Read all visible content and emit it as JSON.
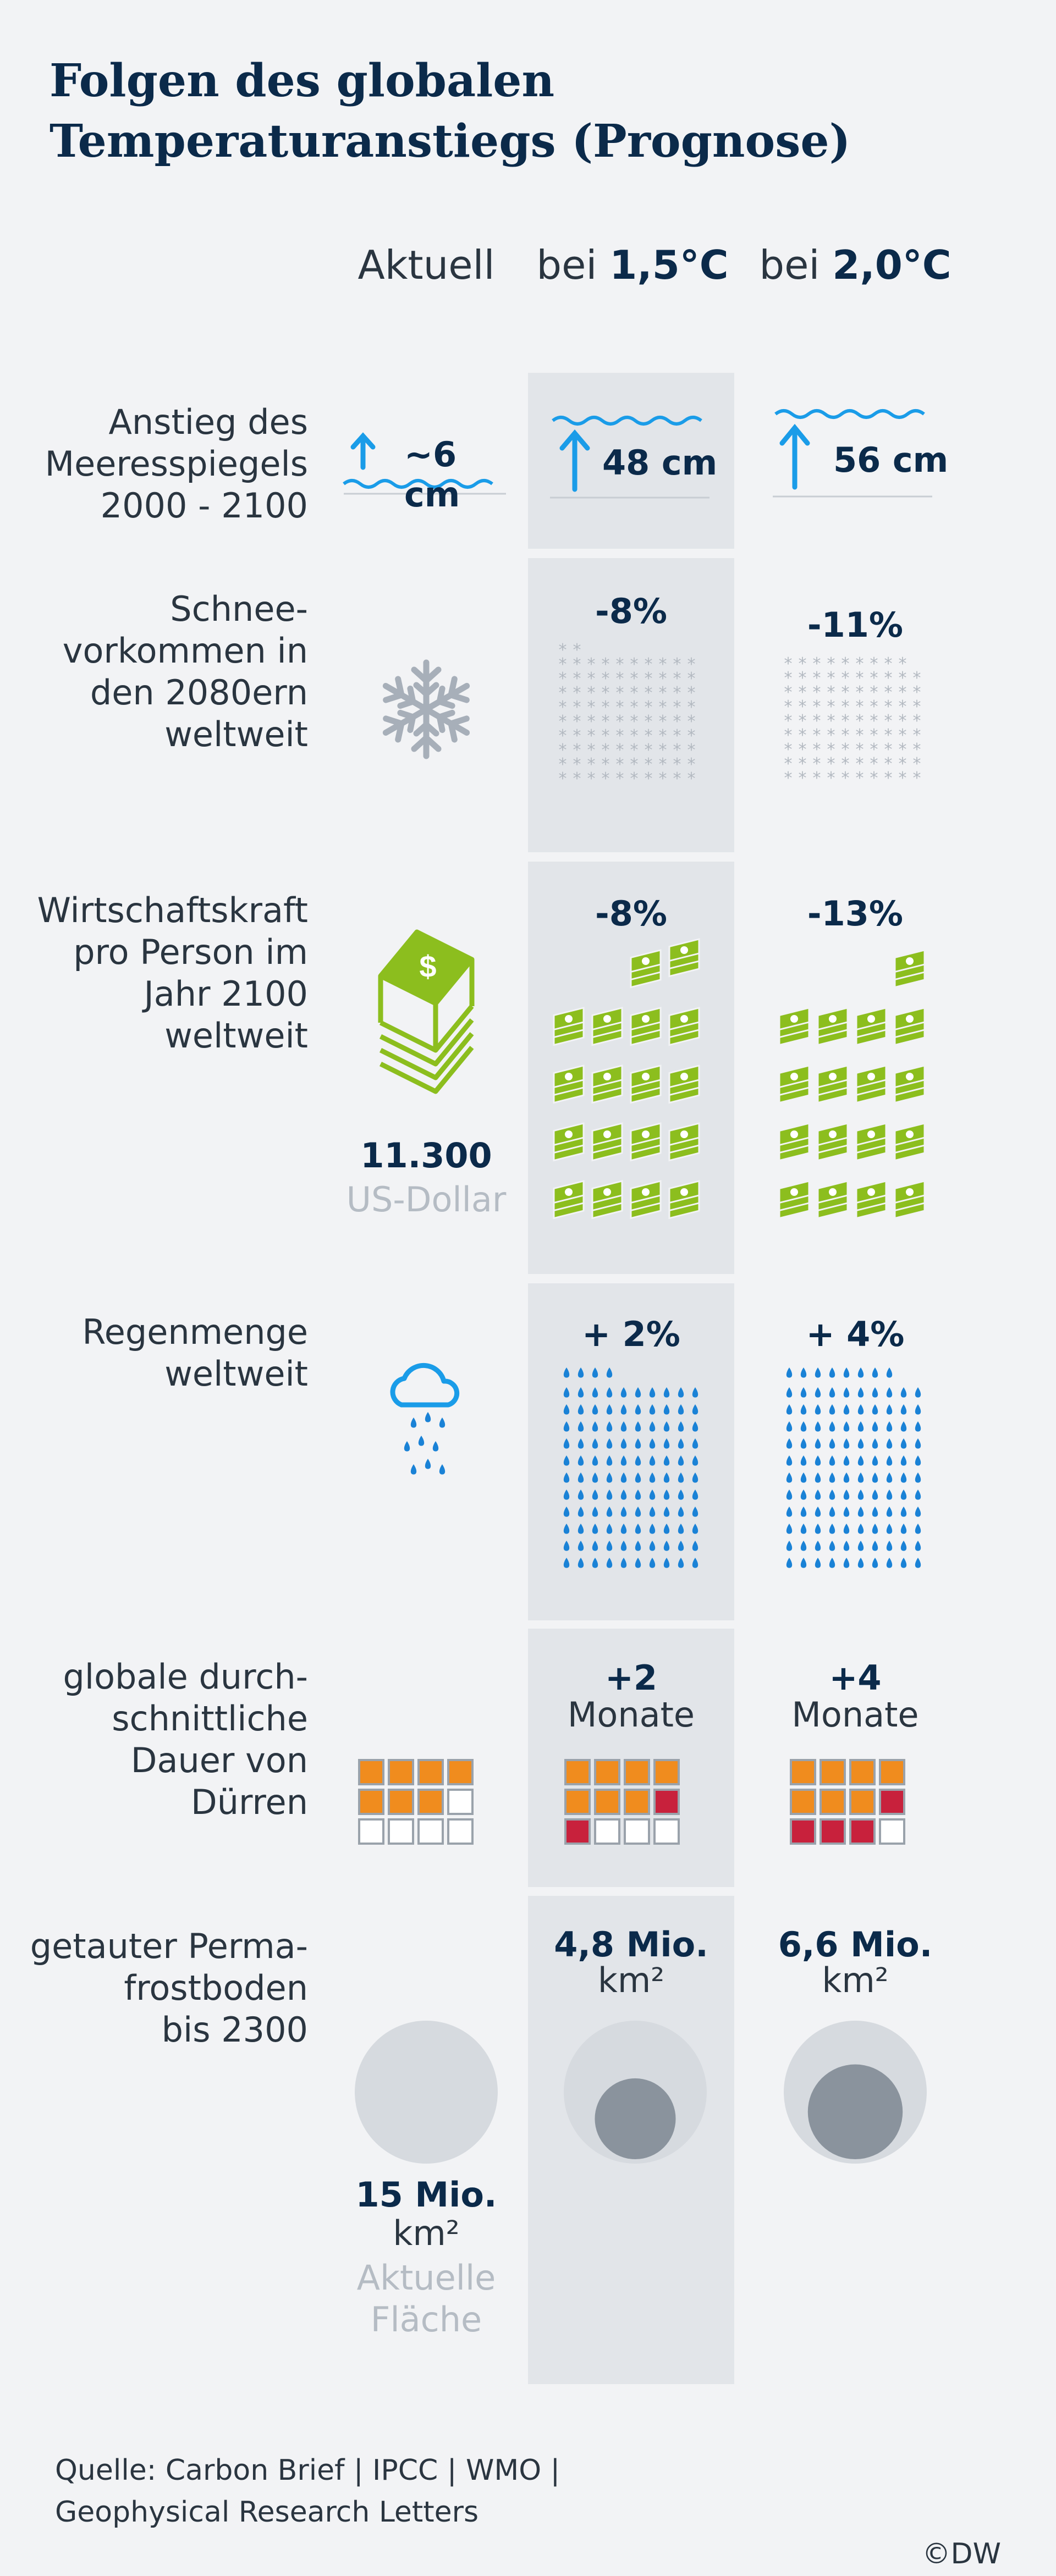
{
  "title_line1": "Folgen des globalen",
  "title_line2": "Temperaturanstiegs (Prognose)",
  "columns": {
    "current": "Aktuell",
    "c15_prefix": "bei ",
    "c15_value": "1,5°C",
    "c20_prefix": "bei ",
    "c20_value": "2,0°C"
  },
  "rows": {
    "sea": {
      "label1": "Anstieg des",
      "label2": "Meeresspiegels",
      "label3": "2000 - 2100",
      "current": "~6 cm",
      "c15": "48 cm",
      "c20": "56 cm"
    },
    "snow": {
      "label1": "Schnee-",
      "label2": "vorkommen in",
      "label3": "den 2080ern",
      "label4": "weltweit",
      "c15": "-8%",
      "c20": "-11%"
    },
    "economy": {
      "label1": "Wirtschaftskraft",
      "label2": "pro Person im",
      "label3": "Jahr 2100",
      "label4": "weltweit",
      "current_value": "11.300",
      "current_unit": "US-Dollar",
      "c15": "-8%",
      "c20": "-13%"
    },
    "rain": {
      "label1": "Regenmenge",
      "label2": "weltweit",
      "c15": "+ 2%",
      "c20": "+ 4%"
    },
    "drought": {
      "label1": "globale durch-",
      "label2": "schnittliche",
      "label3": "Dauer von",
      "label4": "Dürren",
      "c15_value": "+2",
      "c15_unit": "Monate",
      "c20_value": "+4",
      "c20_unit": "Monate"
    },
    "permafrost": {
      "label1": "getauter Perma-",
      "label2": "frostboden",
      "label3": "bis 2300",
      "current_value": "15 Mio.",
      "current_unit": "km²",
      "current_note1": "Aktuelle",
      "current_note2": "Fläche",
      "c15_value": "4,8 Mio.",
      "c15_unit": "km²",
      "c20_value": "6,6 Mio.",
      "c20_unit": "km²"
    }
  },
  "source_line1": "Quelle: Carbon Brief | IPCC | WMO |",
  "source_line2": "Geophysical Research Letters",
  "credit": "©DW",
  "colors": {
    "navy": "#0b2a4a",
    "water": "#1a9ce8",
    "drop": "#1a82d6",
    "money": "#8cbe1e",
    "orange": "#f08c1e",
    "red": "#c8213c",
    "snowgrey": "#b3b9c1",
    "band": "#e2e5e9"
  },
  "chart_data": {
    "type": "table",
    "columns": [
      "Aktuell",
      "bei 1,5°C",
      "bei 2,0°C"
    ],
    "rows": [
      {
        "indicator": "Anstieg des Meeresspiegels 2000 - 2100",
        "values": [
          "~6 cm",
          "48 cm",
          "56 cm"
        ]
      },
      {
        "indicator": "Schneevorkommen in den 2080ern weltweit",
        "values": [
          null,
          "-8%",
          "-11%"
        ]
      },
      {
        "indicator": "Wirtschaftskraft pro Person im Jahr 2100 weltweit",
        "values": [
          "11.300 US-Dollar",
          "-8%",
          "-13%"
        ]
      },
      {
        "indicator": "Regenmenge weltweit",
        "values": [
          null,
          "+ 2%",
          "+ 4%"
        ]
      },
      {
        "indicator": "globale durchschnittliche Dauer von Dürren",
        "values": [
          null,
          "+2 Monate",
          "+4 Monate"
        ]
      },
      {
        "indicator": "getauter Permafrostboden bis 2300",
        "values": [
          "15 Mio. km²",
          "4,8 Mio. km²",
          "6,6 Mio. km²"
        ]
      }
    ],
    "sea_level_cm": [
      6,
      48,
      56
    ],
    "snow_change_pct": [
      -8,
      -11
    ],
    "economy_change_pct": [
      -8,
      -13
    ],
    "rain_change_pct": [
      2,
      4
    ],
    "drought_months": [
      2,
      4
    ],
    "permafrost_mio_km2": [
      15,
      4.8,
      6.6
    ]
  }
}
